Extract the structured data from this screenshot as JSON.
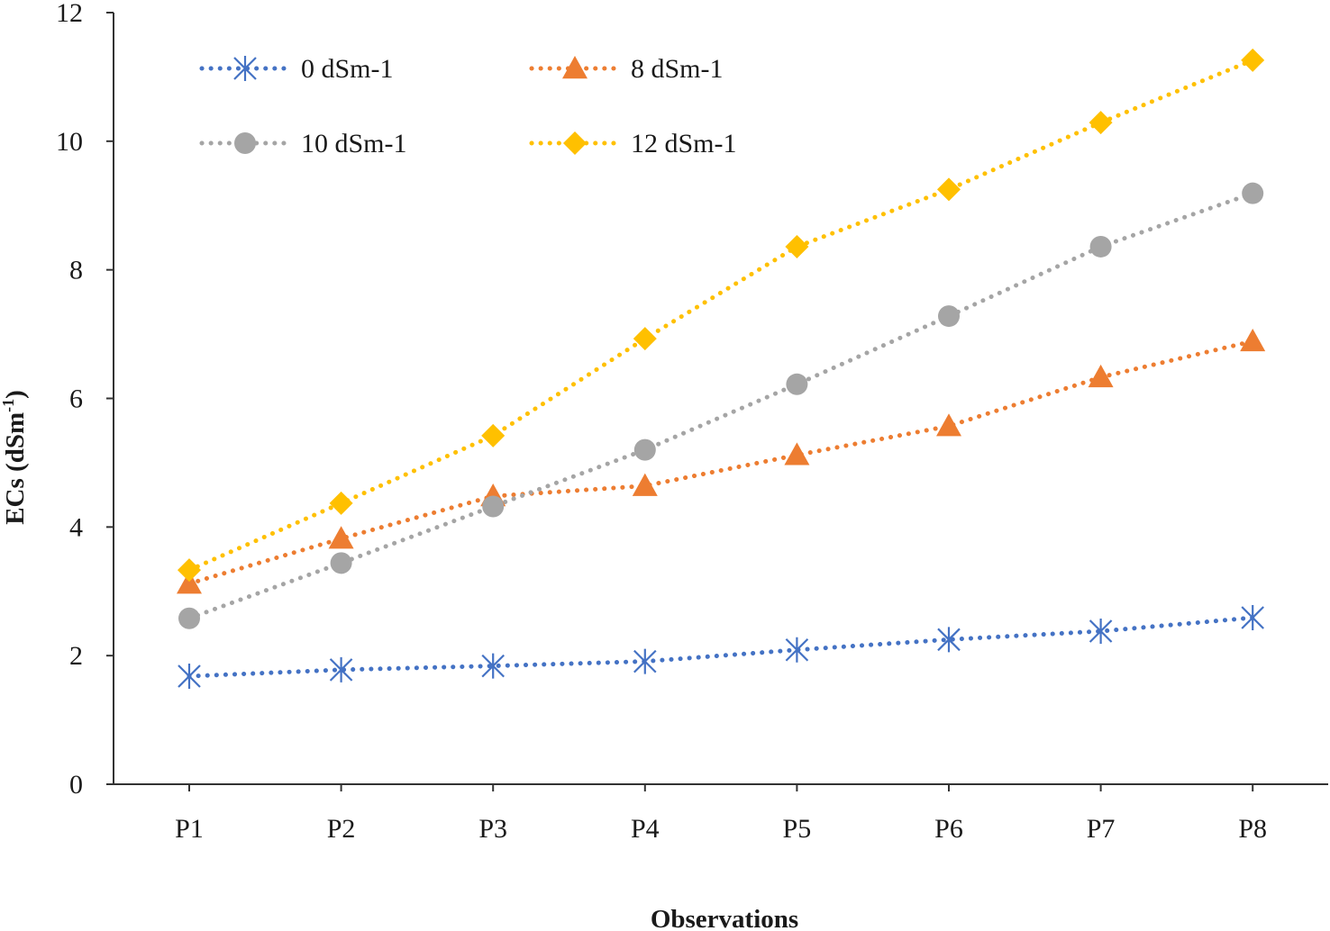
{
  "chart_data": {
    "type": "line",
    "title": "",
    "xlabel": "Observations",
    "ylabel": {
      "prefix": "ECs (dSm",
      "sup": "-1",
      "suffix": ")"
    },
    "ylim": [
      0,
      12
    ],
    "yticks": [
      "0",
      "2",
      "4",
      "6",
      "8",
      "10",
      "12"
    ],
    "categories": [
      "P1",
      "P2",
      "P3",
      "P4",
      "P5",
      "P6",
      "P7",
      "P8"
    ],
    "legend_position": "top-left",
    "series": [
      {
        "name": "0 dSm-1",
        "color": "#4472C4",
        "marker": "asterisk",
        "values": [
          1.68,
          1.78,
          1.84,
          1.91,
          2.09,
          2.25,
          2.38,
          2.59
        ]
      },
      {
        "name": "8 dSm-1",
        "color": "#ED7D31",
        "marker": "triangle",
        "values": [
          3.12,
          3.82,
          4.48,
          4.64,
          5.12,
          5.57,
          6.33,
          6.89
        ]
      },
      {
        "name": "10 dSm-1",
        "color": "#A5A5A5",
        "marker": "circle",
        "values": [
          2.58,
          3.44,
          4.32,
          5.2,
          6.22,
          7.28,
          8.36,
          9.19
        ]
      },
      {
        "name": "12 dSm-1",
        "color": "#FFC000",
        "marker": "diamond",
        "values": [
          3.33,
          4.37,
          5.42,
          6.93,
          8.36,
          9.25,
          10.29,
          11.26
        ]
      }
    ]
  }
}
